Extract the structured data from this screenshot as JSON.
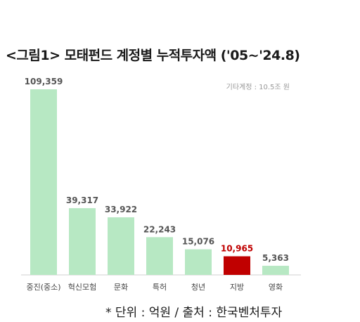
{
  "chart_data": {
    "type": "bar",
    "title": "<그림1> 모태펀드 계정별 누적투자액 ('05~'24.8)",
    "categories": [
      "중진(중소)",
      "혁신모험",
      "문화",
      "특허",
      "청년",
      "지방",
      "영화"
    ],
    "values": [
      109359,
      39317,
      33922,
      22243,
      15076,
      10965,
      5363
    ],
    "value_labels": [
      "109,359",
      "39,317",
      "33,922",
      "22,243",
      "15,076",
      "10,965",
      "5,363"
    ],
    "highlight_index": 5,
    "annotation": "기타계정 : 10.5조 원",
    "footnote": "* 단위 : 억원 / 출처 : 한국벤처투자",
    "ylim": [
      0,
      109359
    ],
    "colors": {
      "bar": "#b7e8c3",
      "highlight": "#c00000",
      "label": "#555555",
      "highlight_label": "#c00000"
    }
  }
}
